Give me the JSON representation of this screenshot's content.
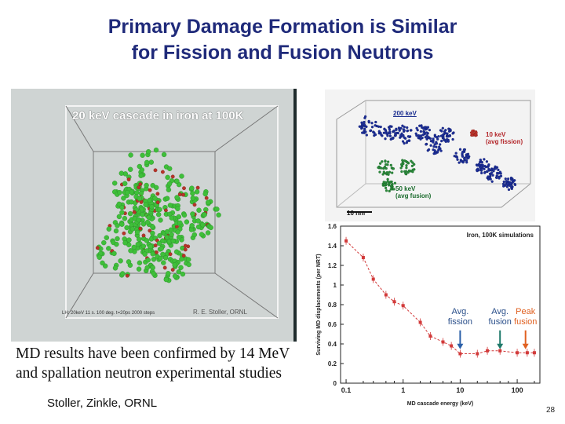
{
  "slide": {
    "title_line1": "Primary Damage Formation is Similar",
    "title_line2": "for Fission and Fusion Neutrons",
    "page_number": "28"
  },
  "left_image": {
    "title": "20 keV cascade in iron at 100K",
    "credit": "R. E. Stoller, ORNL",
    "fine_print": "LH: 20keV 11 s. 100 deg.  t=20ps        2000 steps"
  },
  "caption": {
    "line1": "MD results have been confirmed by 14 MeV",
    "line2": "and spallation neutron experimental studies"
  },
  "authors": "Stoller, Zinkle, ORNL",
  "top_image": {
    "label_200": "200 keV",
    "label_10_line1": "10 keV",
    "label_10_line2": "(avg fission)",
    "label_50_line1": "50 keV",
    "label_50_line2": "(avg fusion)",
    "scale": "10 nm"
  },
  "colors": {
    "title": "#1f2a7a",
    "series": "#d23a3a",
    "arrow_fission": "#2a5fa8",
    "arrow_fusion": "#1f7a6a",
    "arrow_peak": "#e06020"
  },
  "chart_data": {
    "type": "line",
    "title": "Iron, 100K simulations",
    "xlabel": "MD cascade energy (keV)",
    "ylabel": "Surviving MD displacements (per NRT)",
    "xscale": "log",
    "xlim": [
      0.08,
      250
    ],
    "ylim": [
      0,
      1.6
    ],
    "xticks": [
      "0.1",
      "1",
      "10",
      "100"
    ],
    "yticks": [
      "0",
      "0.2",
      "0.4",
      "0.6",
      "0.8",
      "1",
      "1.2",
      "1.4",
      "1.6"
    ],
    "grid": false,
    "series": [
      {
        "x": [
          0.1,
          0.2,
          0.3,
          0.5,
          0.7,
          1,
          2,
          3,
          5,
          7,
          10,
          20,
          30,
          50,
          100,
          150,
          200
        ],
        "y": [
          1.45,
          1.28,
          1.06,
          0.9,
          0.83,
          0.79,
          0.62,
          0.48,
          0.42,
          0.38,
          0.3,
          0.3,
          0.33,
          0.33,
          0.31,
          0.31,
          0.31
        ]
      }
    ],
    "annotations": [
      {
        "text_line1": "Avg.",
        "text_line2": "fission",
        "x": 10,
        "color_key": "arrow_fission"
      },
      {
        "text_line1": "Avg.",
        "text_line2": "fusion",
        "x": 50,
        "color_key": "arrow_fusion"
      },
      {
        "text_line1": "Peak",
        "text_line2": "fusion",
        "x": 140,
        "color_key": "arrow_peak"
      }
    ]
  }
}
